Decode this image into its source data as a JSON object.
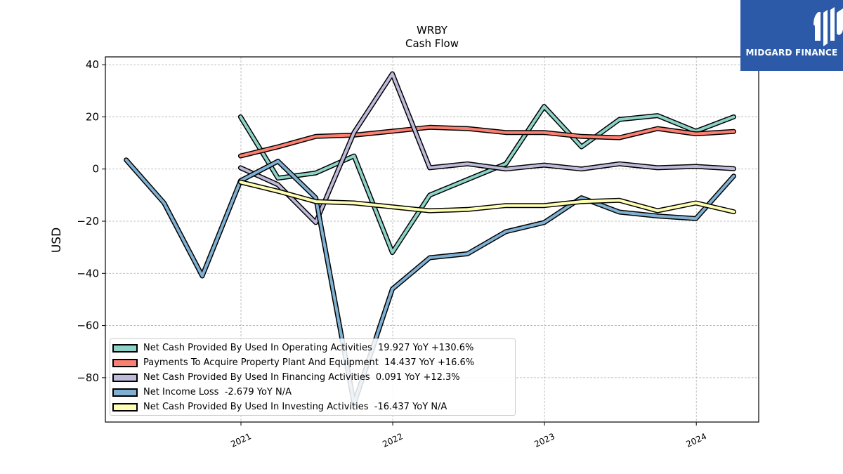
{
  "brand": {
    "name": "MIDGARD FINANCE",
    "color": "#2c5aa8"
  },
  "chart_data": {
    "type": "line",
    "title": "WRBY",
    "subtitle": "Cash Flow",
    "ylabel": "USD",
    "xlabel": "",
    "ylim": [
      -97,
      43
    ],
    "xlim": [
      "2020-02-10",
      "2024-05-30"
    ],
    "yticks": [
      40,
      20,
      0,
      -20,
      -40,
      -60,
      -80
    ],
    "ytick_labels": [
      "40",
      "20",
      "0",
      "−20",
      "−40",
      "−60",
      "−80"
    ],
    "xticks": [
      "2021-01-01",
      "2022-01-01",
      "2023-01-01",
      "2024-01-01"
    ],
    "xtick_labels": [
      "2021",
      "2022",
      "2023",
      "2024"
    ],
    "grid": true,
    "legend_position": "lower-left",
    "series": [
      {
        "name": "Net Cash Provided By Used In Operating Activities",
        "legend_value": "19.927 YoY +130.6%",
        "color": "#8dd3c7",
        "x": [
          "2020-12-31",
          "2021-03-31",
          "2021-06-30",
          "2021-09-30",
          "2021-12-31",
          "2022-03-31",
          "2022-06-30",
          "2022-09-30",
          "2022-12-31",
          "2023-03-31",
          "2023-06-30",
          "2023-09-30",
          "2023-12-31",
          "2024-03-31"
        ],
        "values": [
          20,
          -3.5,
          -1.5,
          5,
          -32,
          -10,
          -4,
          2,
          24,
          8.5,
          19,
          20.5,
          14.5,
          20
        ]
      },
      {
        "name": "Payments To Acquire Property Plant And Equipment",
        "legend_value": "14.437 YoY +16.6%",
        "color": "#fb8072",
        "x": [
          "2020-12-31",
          "2021-03-31",
          "2021-06-30",
          "2021-09-30",
          "2021-12-31",
          "2022-03-31",
          "2022-06-30",
          "2022-09-30",
          "2022-12-31",
          "2023-03-31",
          "2023-06-30",
          "2023-09-30",
          "2023-12-31",
          "2024-03-31"
        ],
        "values": [
          5,
          8.5,
          12.5,
          13,
          14.5,
          16,
          15.5,
          14,
          14,
          12.5,
          12,
          15.5,
          13.5,
          14.4
        ]
      },
      {
        "name": "Net Cash Provided By Used In Financing Activities",
        "legend_value": "0.091 YoY +12.3%",
        "color": "#bebada",
        "x": [
          "2020-12-31",
          "2021-03-31",
          "2021-06-30",
          "2021-09-30",
          "2021-12-31",
          "2022-03-31",
          "2022-06-30",
          "2022-09-30",
          "2022-12-31",
          "2023-03-31",
          "2023-06-30",
          "2023-09-30",
          "2023-12-31",
          "2024-03-31"
        ],
        "values": [
          0.5,
          -6,
          -20.5,
          14,
          36.5,
          0.5,
          2,
          0,
          1.5,
          0,
          2,
          0.5,
          1,
          0.1
        ]
      },
      {
        "name": "Net Income Loss",
        "legend_value": "-2.679 YoY N/A",
        "color": "#80b1d3",
        "x": [
          "2020-03-31",
          "2020-06-30",
          "2020-09-30",
          "2020-12-31",
          "2021-03-31",
          "2021-06-30",
          "2021-09-30",
          "2021-12-31",
          "2022-03-31",
          "2022-06-30",
          "2022-09-30",
          "2022-12-31",
          "2023-03-31",
          "2023-06-30",
          "2023-09-30",
          "2023-12-31",
          "2024-03-31"
        ],
        "values": [
          3.5,
          -13,
          -41,
          -4.5,
          3,
          -11,
          -90,
          -46,
          -34,
          -32.5,
          -24,
          -20.5,
          -11,
          -16.5,
          -18,
          -19,
          -2.7
        ]
      },
      {
        "name": "Net Cash Provided By Used In Investing Activities",
        "legend_value": "-16.437 YoY N/A",
        "color": "#ffffb3",
        "x": [
          "2020-12-31",
          "2021-03-31",
          "2021-06-30",
          "2021-09-30",
          "2021-12-31",
          "2022-03-31",
          "2022-06-30",
          "2022-09-30",
          "2022-12-31",
          "2023-03-31",
          "2023-06-30",
          "2023-09-30",
          "2023-12-31",
          "2024-03-31"
        ],
        "values": [
          -5,
          -8.5,
          -12.5,
          -13,
          -14.5,
          -16,
          -15.5,
          -14,
          -14,
          -12.5,
          -12,
          -16,
          -13,
          -16.4
        ]
      }
    ]
  }
}
